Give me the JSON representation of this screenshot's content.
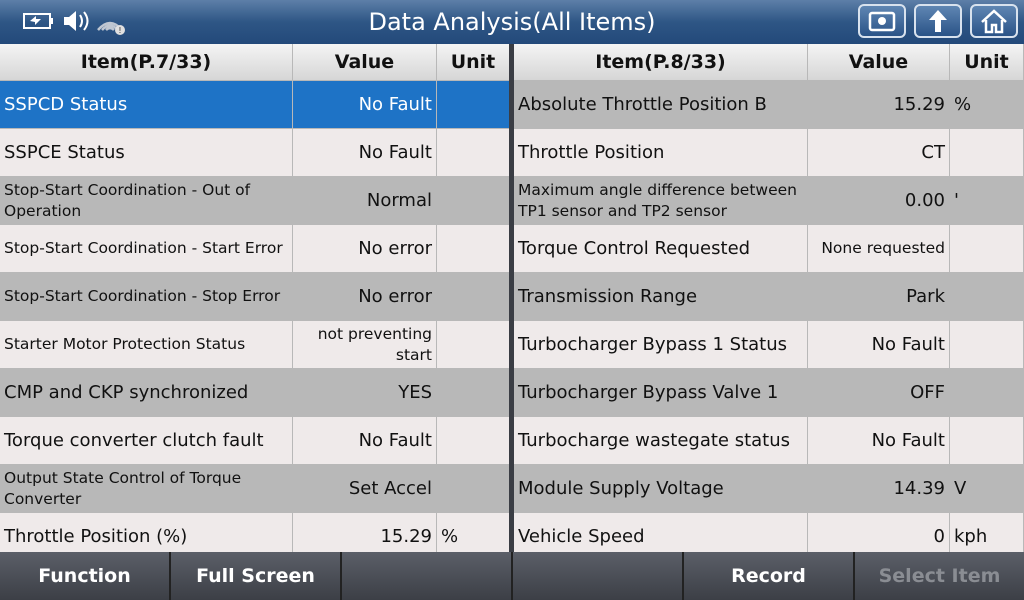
{
  "header": {
    "title": "Data Analysis(All Items)"
  },
  "tables": [
    {
      "columns": [
        "Item(P.7/33)",
        "Value",
        "Unit"
      ],
      "rows": [
        {
          "item": "SSPCD Status",
          "value": "No Fault"
        },
        {
          "item": "SSPCE Status",
          "value": "No Fault"
        },
        {
          "item": "Stop-Start Coordination - Out of Operation",
          "value": "Normal"
        },
        {
          "item": "Stop-Start Coordination - Start Error",
          "value": "No error"
        },
        {
          "item": "Stop-Start Coordination - Stop Error",
          "value": "No error"
        },
        {
          "item": "Starter Motor Protection Status",
          "value": "not preventing start"
        },
        {
          "item": "CMP and CKP synchronized",
          "value": "YES"
        },
        {
          "item": "Torque converter clutch fault",
          "value": "No Fault"
        },
        {
          "item": "Output State Control of Torque Converter",
          "value": "Set Accel"
        },
        {
          "item": "Throttle Position (%)",
          "value": "15.29",
          "unit": "%"
        }
      ]
    },
    {
      "columns": [
        "Item(P.8/33)",
        "Value",
        "Unit"
      ],
      "rows": [
        {
          "item": "Absolute Throttle Position B",
          "value": "15.29",
          "unit": "%"
        },
        {
          "item": "Throttle Position",
          "value": "CT"
        },
        {
          "item": "Maximum angle difference between TP1 sensor and TP2 sensor",
          "value": "0.00",
          "unit": "'"
        },
        {
          "item": "Torque Control Requested",
          "value": "None requested"
        },
        {
          "item": "Transmission Range",
          "value": "Park"
        },
        {
          "item": "Turbocharger Bypass 1 Status",
          "value": "No Fault"
        },
        {
          "item": "Turbocharger Bypass Valve 1",
          "value": "OFF"
        },
        {
          "item": "Turbocharge wastegate status",
          "value": "No Fault"
        },
        {
          "item": "Module Supply Voltage",
          "value": "14.39",
          "unit": "V"
        },
        {
          "item": "Vehicle Speed",
          "value": "0",
          "unit": "kph"
        }
      ]
    }
  ],
  "buttons": [
    "Function",
    "Full Screen",
    "Record",
    "Select Item"
  ]
}
